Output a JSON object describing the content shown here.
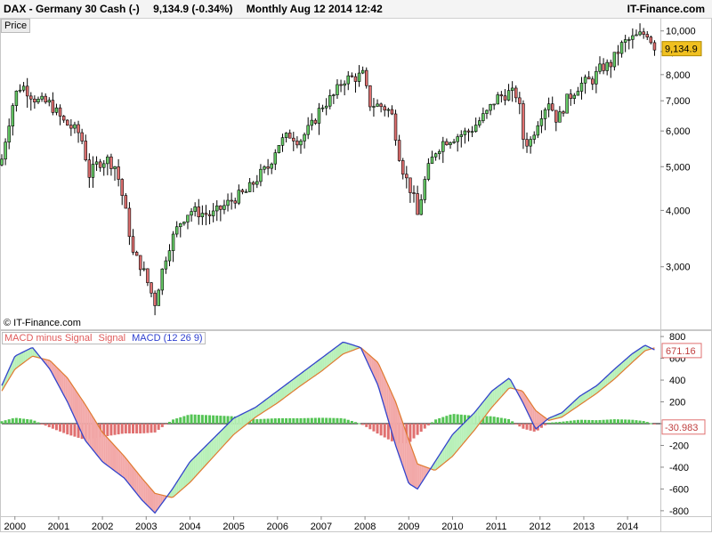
{
  "header": {
    "symbol": "DAX - Germany 30 Cash (-)",
    "last": "9,134.9 (-0.34%)",
    "period": "Monthly  Aug 12 2014 12:42",
    "brand": "IT-Finance.com"
  },
  "price_tab": "Price",
  "copyright": "© IT-Finance.com",
  "legend": {
    "hist": "MACD minus Signal",
    "signal": "Signal",
    "macd": "MACD (12 26 9)"
  },
  "colors": {
    "up": "#66cc66",
    "down": "#e07070",
    "macd": "#3344cc",
    "signal": "#e07a30",
    "fill_up": "#b8f0b8",
    "fill_down": "#f2a8a8",
    "hist_pos": "#55c455",
    "hist_neg": "#e07070",
    "badge_price": "#f0c020",
    "badge_macd": "#e07070"
  },
  "chart_data": [
    {
      "type": "candlestick",
      "title": "DAX - Germany 30 Cash (-)",
      "scale": "log",
      "ylim": [
        2200,
        10500
      ],
      "y_ticks": [
        "3,000",
        "4,000",
        "5,000",
        "6,000",
        "7,000",
        "8,000",
        "9,000",
        "10,000"
      ],
      "y_tick_values": [
        3000,
        4000,
        5000,
        6000,
        7000,
        8000,
        9000,
        10000
      ],
      "x_ticks": [
        "2000",
        "2001",
        "2002",
        "2003",
        "2004",
        "2005",
        "2006",
        "2007",
        "2008",
        "2009",
        "2010",
        "2011",
        "2012",
        "2013",
        "2014"
      ],
      "x_range": [
        1999.7,
        2014.75
      ],
      "last_value": "9,134.9",
      "anchors": [
        [
          1999.7,
          5200
        ],
        [
          2000.0,
          7200
        ],
        [
          2000.15,
          7600
        ],
        [
          2000.5,
          7000
        ],
        [
          2000.8,
          6900
        ],
        [
          2001.1,
          6300
        ],
        [
          2001.5,
          5900
        ],
        [
          2001.7,
          4800
        ],
        [
          2001.9,
          5100
        ],
        [
          2002.1,
          5200
        ],
        [
          2002.3,
          5000
        ],
        [
          2002.5,
          4100
        ],
        [
          2002.7,
          3200
        ],
        [
          2002.9,
          3000
        ],
        [
          2003.1,
          2650
        ],
        [
          2003.2,
          2500
        ],
        [
          2003.5,
          3300
        ],
        [
          2003.8,
          3800
        ],
        [
          2004.0,
          4000
        ],
        [
          2004.5,
          3900
        ],
        [
          2004.8,
          4100
        ],
        [
          2005.0,
          4250
        ],
        [
          2005.3,
          4400
        ],
        [
          2005.6,
          4800
        ],
        [
          2005.8,
          5000
        ],
        [
          2006.0,
          5600
        ],
        [
          2006.3,
          5900
        ],
        [
          2006.5,
          5700
        ],
        [
          2006.8,
          6200
        ],
        [
          2007.0,
          6800
        ],
        [
          2007.3,
          7200
        ],
        [
          2007.5,
          7800
        ],
        [
          2007.8,
          7900
        ],
        [
          2007.95,
          8000
        ],
        [
          2008.1,
          6900
        ],
        [
          2008.4,
          6800
        ],
        [
          2008.6,
          6600
        ],
        [
          2008.8,
          5200
        ],
        [
          2008.9,
          4800
        ],
        [
          2009.1,
          4300
        ],
        [
          2009.2,
          3900
        ],
        [
          2009.4,
          4800
        ],
        [
          2009.6,
          5400
        ],
        [
          2009.8,
          5700
        ],
        [
          2010.0,
          5800
        ],
        [
          2010.4,
          6000
        ],
        [
          2010.8,
          6600
        ],
        [
          2011.0,
          7100
        ],
        [
          2011.3,
          7300
        ],
        [
          2011.5,
          7200
        ],
        [
          2011.6,
          5800
        ],
        [
          2011.75,
          5600
        ],
        [
          2012.0,
          6500
        ],
        [
          2012.2,
          7000
        ],
        [
          2012.4,
          6300
        ],
        [
          2012.6,
          7000
        ],
        [
          2012.9,
          7600
        ],
        [
          2013.2,
          7800
        ],
        [
          2013.4,
          8300
        ],
        [
          2013.6,
          8400
        ],
        [
          2013.9,
          9400
        ],
        [
          2014.1,
          9600
        ],
        [
          2014.3,
          9800
        ],
        [
          2014.45,
          9900
        ],
        [
          2014.55,
          9500
        ],
        [
          2014.65,
          9134.9
        ]
      ]
    },
    {
      "type": "line",
      "title": "MACD (12 26 9)",
      "ylim": [
        -850,
        850
      ],
      "y_ticks": [
        "-800",
        "-600",
        "-400",
        "-200",
        "0",
        "200",
        "400",
        "600",
        "800"
      ],
      "y_tick_values": [
        -800,
        -600,
        -400,
        -200,
        0,
        200,
        400,
        600,
        800
      ],
      "last_values": {
        "macd": "671.16",
        "hist": "-30.983"
      },
      "series": [
        {
          "name": "MACD (12 26 9)",
          "anchors": [
            [
              1999.7,
              350
            ],
            [
              2000.0,
              620
            ],
            [
              2000.4,
              700
            ],
            [
              2000.8,
              500
            ],
            [
              2001.2,
              200
            ],
            [
              2001.6,
              -150
            ],
            [
              2002.0,
              -350
            ],
            [
              2002.5,
              -500
            ],
            [
              2002.9,
              -700
            ],
            [
              2003.2,
              -820
            ],
            [
              2003.6,
              -600
            ],
            [
              2004.0,
              -350
            ],
            [
              2004.5,
              -150
            ],
            [
              2005.0,
              50
            ],
            [
              2005.5,
              150
            ],
            [
              2006.0,
              300
            ],
            [
              2006.5,
              450
            ],
            [
              2007.0,
              600
            ],
            [
              2007.5,
              750
            ],
            [
              2007.9,
              700
            ],
            [
              2008.3,
              350
            ],
            [
              2008.7,
              -200
            ],
            [
              2009.0,
              -550
            ],
            [
              2009.2,
              -600
            ],
            [
              2009.6,
              -350
            ],
            [
              2010.0,
              -100
            ],
            [
              2010.5,
              100
            ],
            [
              2010.9,
              300
            ],
            [
              2011.3,
              420
            ],
            [
              2011.6,
              200
            ],
            [
              2011.9,
              -50
            ],
            [
              2012.2,
              50
            ],
            [
              2012.5,
              100
            ],
            [
              2012.9,
              250
            ],
            [
              2013.3,
              350
            ],
            [
              2013.7,
              500
            ],
            [
              2014.1,
              640
            ],
            [
              2014.4,
              720
            ],
            [
              2014.65,
              671.16
            ]
          ]
        },
        {
          "name": "Signal",
          "anchors": [
            [
              1999.7,
              300
            ],
            [
              2000.0,
              500
            ],
            [
              2000.4,
              620
            ],
            [
              2000.8,
              580
            ],
            [
              2001.2,
              420
            ],
            [
              2001.6,
              180
            ],
            [
              2002.0,
              -80
            ],
            [
              2002.5,
              -300
            ],
            [
              2002.9,
              -500
            ],
            [
              2003.2,
              -640
            ],
            [
              2003.6,
              -680
            ],
            [
              2004.0,
              -540
            ],
            [
              2004.5,
              -320
            ],
            [
              2005.0,
              -100
            ],
            [
              2005.5,
              60
            ],
            [
              2006.0,
              190
            ],
            [
              2006.5,
              340
            ],
            [
              2007.0,
              480
            ],
            [
              2007.5,
              640
            ],
            [
              2007.9,
              700
            ],
            [
              2008.3,
              560
            ],
            [
              2008.7,
              200
            ],
            [
              2009.0,
              -150
            ],
            [
              2009.2,
              -370
            ],
            [
              2009.6,
              -430
            ],
            [
              2010.0,
              -300
            ],
            [
              2010.5,
              -60
            ],
            [
              2010.9,
              150
            ],
            [
              2011.3,
              330
            ],
            [
              2011.6,
              300
            ],
            [
              2011.9,
              120
            ],
            [
              2012.2,
              30
            ],
            [
              2012.5,
              60
            ],
            [
              2012.9,
              170
            ],
            [
              2013.3,
              280
            ],
            [
              2013.7,
              410
            ],
            [
              2014.1,
              560
            ],
            [
              2014.4,
              670
            ],
            [
              2014.65,
              700
            ]
          ]
        }
      ]
    }
  ]
}
